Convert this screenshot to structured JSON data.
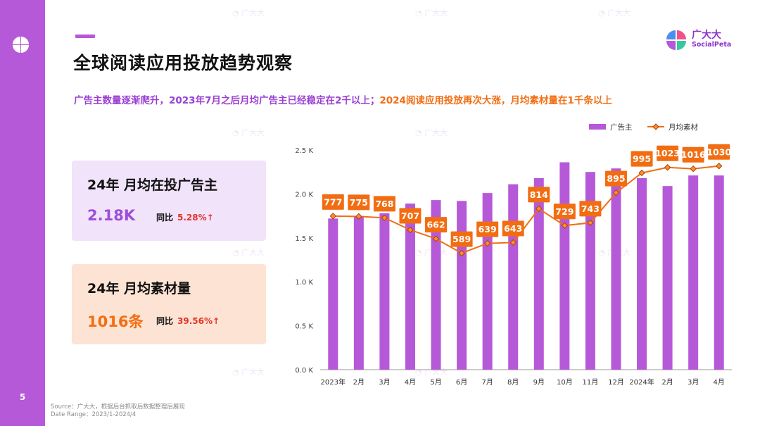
{
  "slide": {
    "page_number": "5",
    "title": "全球阅读应用投放趋势观察",
    "brand": {
      "cn": "广大大",
      "en": "SocialPeta"
    },
    "subtitle_part1": "广告主数量逐渐爬升，2023年7月之后月均广告主已经稳定在2千以上；",
    "subtitle_part2": "2024阅读应用投放再次大涨，月均素材量在1千条以上"
  },
  "cards": {
    "advertisers": {
      "title": "24年 月均在投广告主",
      "value": "2.18K",
      "compare_label": "同比",
      "compare_value": "5.28%↑"
    },
    "creatives": {
      "title": "24年 月均素材量",
      "value": "1016条",
      "compare_label": "同比",
      "compare_value": "39.56%↑"
    }
  },
  "footer": {
    "source": "Source：广大大，根据后台抓取后数据整理后展现",
    "date_range": "Date Range：2023/1-2024/4"
  },
  "colors": {
    "purple": "#b659d8",
    "orange": "#f26d12"
  },
  "chart_data": {
    "type": "bar",
    "categories": [
      "2023年",
      "2月",
      "3月",
      "4月",
      "5月",
      "6月",
      "7月",
      "8月",
      "9月",
      "10月",
      "11月",
      "12月",
      "2024年",
      "2月",
      "3月",
      "4月"
    ],
    "series": [
      {
        "name": "广告主",
        "type": "bar",
        "values": [
          1720,
          1740,
          1780,
          1890,
          1930,
          1920,
          2010,
          2110,
          2180,
          2360,
          2250,
          2290,
          2180,
          2090,
          2210,
          2210
        ]
      },
      {
        "name": "月均素材",
        "type": "line",
        "values": [
          777,
          775,
          768,
          707,
          662,
          589,
          639,
          643,
          814,
          729,
          743,
          895,
          995,
          1023,
          1016,
          1030
        ]
      }
    ],
    "yticks": [
      "0.0 K",
      "0.5 K",
      "1.0 K",
      "1.5 K",
      "2.0 K",
      "2.5 K"
    ],
    "ylim": [
      0,
      2500
    ],
    "legend": [
      "广告主",
      "月均素材"
    ],
    "line_plot_ratio": 2.25
  }
}
